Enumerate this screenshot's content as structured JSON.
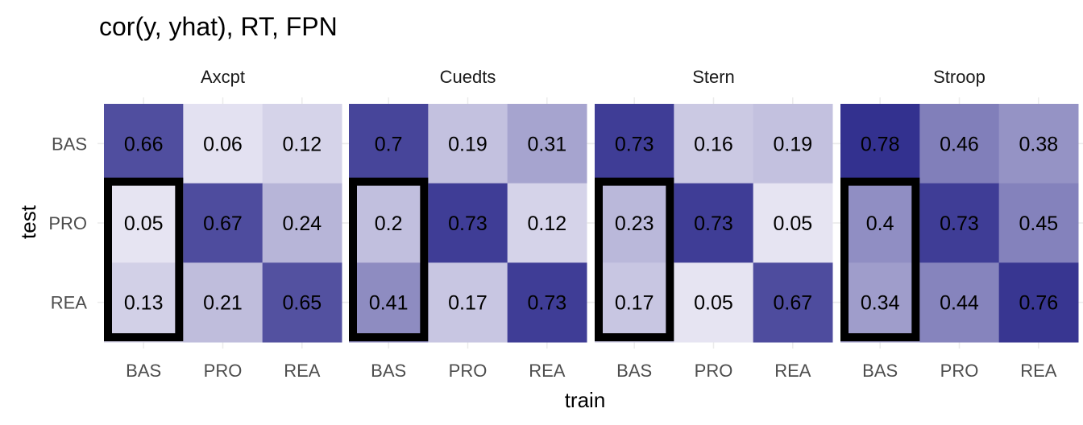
{
  "chart_data": {
    "type": "heatmap",
    "title": "cor(y, yhat), RT, FPN",
    "xlabel": "train",
    "ylabel": "test",
    "x_categories": [
      "BAS",
      "PRO",
      "REA"
    ],
    "y_categories": [
      "BAS",
      "PRO",
      "REA"
    ],
    "value_range": [
      0,
      0.8
    ],
    "color_low": "#f2f0f9",
    "color_high": "#2e2c8c",
    "highlight_column": "BAS",
    "highlight_color": "#000000",
    "panels": [
      {
        "name": "Axcpt",
        "values": [
          [
            0.66,
            0.06,
            0.12
          ],
          [
            0.05,
            0.67,
            0.24
          ],
          [
            0.13,
            0.21,
            0.65
          ]
        ],
        "labels": [
          [
            "0.66",
            "0.06",
            "0.12"
          ],
          [
            "0.05",
            "0.67",
            "0.24"
          ],
          [
            "0.13",
            "0.21",
            "0.65"
          ]
        ]
      },
      {
        "name": "Cuedts",
        "values": [
          [
            0.7,
            0.19,
            0.31
          ],
          [
            0.2,
            0.73,
            0.12
          ],
          [
            0.41,
            0.17,
            0.73
          ]
        ],
        "labels": [
          [
            "0.7",
            "0.19",
            "0.31"
          ],
          [
            "0.2",
            "0.73",
            "0.12"
          ],
          [
            "0.41",
            "0.17",
            "0.73"
          ]
        ]
      },
      {
        "name": "Stern",
        "values": [
          [
            0.73,
            0.16,
            0.19
          ],
          [
            0.23,
            0.73,
            0.05
          ],
          [
            0.17,
            0.05,
            0.67
          ]
        ],
        "labels": [
          [
            "0.73",
            "0.16",
            "0.19"
          ],
          [
            "0.23",
            "0.73",
            "0.05"
          ],
          [
            "0.17",
            "0.05",
            "0.67"
          ]
        ]
      },
      {
        "name": "Stroop",
        "values": [
          [
            0.78,
            0.46,
            0.38
          ],
          [
            0.4,
            0.73,
            0.45
          ],
          [
            0.34,
            0.44,
            0.76
          ]
        ],
        "labels": [
          [
            "0.78",
            "0.46",
            "0.38"
          ],
          [
            "0.4",
            "0.73",
            "0.45"
          ],
          [
            "0.34",
            "0.44",
            "0.76"
          ]
        ]
      }
    ]
  }
}
